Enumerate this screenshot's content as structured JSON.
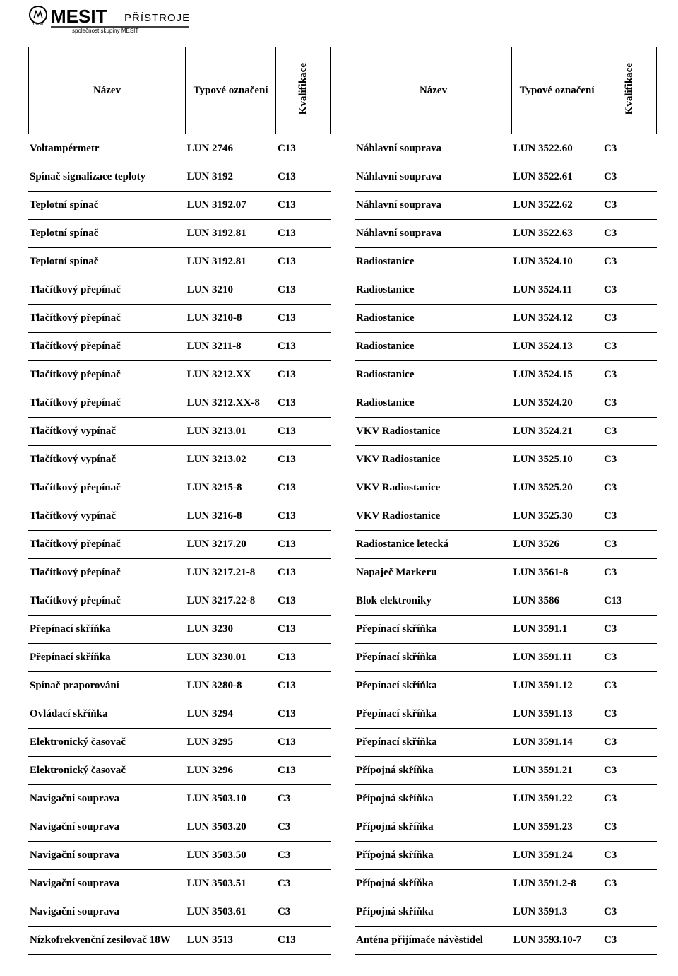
{
  "logo": {
    "brand_main": "MESIT",
    "brand_sub": "PŘÍSTROJE",
    "tagline": "společnost skupiny MESIT",
    "mark_text": "mesit"
  },
  "headers": {
    "name": "Název",
    "type": "Typové označení",
    "qual": "Kvalifikace"
  },
  "left": [
    {
      "n": "Voltampérmetr",
      "t": "LUN 2746",
      "q": "C13"
    },
    {
      "n": "Spínač signalizace teploty",
      "t": "LUN 3192",
      "q": "C13"
    },
    {
      "n": "Teplotní spínač",
      "t": "LUN 3192.07",
      "q": "C13"
    },
    {
      "n": "Teplotní spínač",
      "t": "LUN 3192.81",
      "q": "C13"
    },
    {
      "n": "Teplotní spínač",
      "t": "LUN 3192.81",
      "q": "C13"
    },
    {
      "n": "Tlačítkový přepínač",
      "t": "LUN 3210",
      "q": "C13"
    },
    {
      "n": "Tlačítkový přepínač",
      "t": "LUN 3210-8",
      "q": "C13"
    },
    {
      "n": "Tlačítkový přepínač",
      "t": "LUN 3211-8",
      "q": "C13"
    },
    {
      "n": "Tlačítkový přepínač",
      "t": "LUN 3212.XX",
      "q": "C13"
    },
    {
      "n": "Tlačítkový přepínač",
      "t": "LUN 3212.XX-8",
      "q": "C13"
    },
    {
      "n": "Tlačítkový vypínač",
      "t": "LUN 3213.01",
      "q": "C13"
    },
    {
      "n": "Tlačítkový vypínač",
      "t": "LUN 3213.02",
      "q": "C13"
    },
    {
      "n": "Tlačítkový přepínač",
      "t": "LUN 3215-8",
      "q": "C13"
    },
    {
      "n": "Tlačítkový vypínač",
      "t": "LUN 3216-8",
      "q": "C13"
    },
    {
      "n": "Tlačítkový přepínač",
      "t": "LUN 3217.20",
      "q": "C13"
    },
    {
      "n": "Tlačítkový přepínač",
      "t": "LUN 3217.21-8",
      "q": "C13"
    },
    {
      "n": "Tlačítkový přepínač",
      "t": "LUN 3217.22-8",
      "q": "C13"
    },
    {
      "n": "Přepínací skříňka",
      "t": "LUN 3230",
      "q": "C13"
    },
    {
      "n": "Přepínací skříňka",
      "t": "LUN 3230.01",
      "q": "C13"
    },
    {
      "n": "Spínač praporování",
      "t": "LUN 3280-8",
      "q": "C13"
    },
    {
      "n": "Ovládací skříňka",
      "t": "LUN 3294",
      "q": "C13"
    },
    {
      "n": "Elektronický časovač",
      "t": "LUN 3295",
      "q": "C13"
    },
    {
      "n": "Elektronický časovač",
      "t": "LUN 3296",
      "q": "C13"
    },
    {
      "n": "Navigační souprava",
      "t": "LUN 3503.10",
      "q": "C3"
    },
    {
      "n": "Navigační souprava",
      "t": "LUN 3503.20",
      "q": "C3"
    },
    {
      "n": "Navigační souprava",
      "t": "LUN 3503.50",
      "q": "C3"
    },
    {
      "n": "Navigační souprava",
      "t": "LUN 3503.51",
      "q": "C3"
    },
    {
      "n": "Navigační souprava",
      "t": "LUN 3503.61",
      "q": "C3"
    },
    {
      "n": "Nízkofrekvenční zesilovač 18W",
      "t": "LUN 3513",
      "q": "C13"
    }
  ],
  "right": [
    {
      "n": "Náhlavní souprava",
      "t": "LUN 3522.60",
      "q": "C3"
    },
    {
      "n": "Náhlavní souprava",
      "t": "LUN 3522.61",
      "q": "C3"
    },
    {
      "n": "Náhlavní souprava",
      "t": "LUN 3522.62",
      "q": "C3"
    },
    {
      "n": "Náhlavní souprava",
      "t": "LUN 3522.63",
      "q": "C3"
    },
    {
      "n": "Radiostanice",
      "t": "LUN 3524.10",
      "q": "C3"
    },
    {
      "n": "Radiostanice",
      "t": "LUN 3524.11",
      "q": "C3"
    },
    {
      "n": "Radiostanice",
      "t": "LUN 3524.12",
      "q": "C3"
    },
    {
      "n": "Radiostanice",
      "t": "LUN 3524.13",
      "q": "C3"
    },
    {
      "n": "Radiostanice",
      "t": "LUN 3524.15",
      "q": "C3"
    },
    {
      "n": "Radiostanice",
      "t": "LUN 3524.20",
      "q": "C3"
    },
    {
      "n": "VKV Radiostanice",
      "t": "LUN 3524.21",
      "q": "C3"
    },
    {
      "n": "VKV Radiostanice",
      "t": "LUN 3525.10",
      "q": "C3"
    },
    {
      "n": "VKV Radiostanice",
      "t": "LUN 3525.20",
      "q": "C3"
    },
    {
      "n": "VKV Radiostanice",
      "t": "LUN 3525.30",
      "q": "C3"
    },
    {
      "n": "Radiostanice letecká",
      "t": "LUN 3526",
      "q": "C3"
    },
    {
      "n": "Napaječ Markeru",
      "t": "LUN 3561-8",
      "q": "C3"
    },
    {
      "n": "Blok elektroniky",
      "t": "LUN 3586",
      "q": "C13"
    },
    {
      "n": "Přepínací skříňka",
      "t": "LUN 3591.1",
      "q": "C3"
    },
    {
      "n": "Přepínací skříňka",
      "t": "LUN 3591.11",
      "q": "C3"
    },
    {
      "n": "Přepínací skříňka",
      "t": "LUN 3591.12",
      "q": "C3"
    },
    {
      "n": "Přepínací skříňka",
      "t": "LUN 3591.13",
      "q": "C3"
    },
    {
      "n": "Přepínací skříňka",
      "t": "LUN 3591.14",
      "q": "C3"
    },
    {
      "n": "Přípojná skříňka",
      "t": "LUN 3591.21",
      "q": "C3"
    },
    {
      "n": "Přípojná skříňka",
      "t": "LUN 3591.22",
      "q": "C3"
    },
    {
      "n": "Přípojná skříňka",
      "t": "LUN 3591.23",
      "q": "C3"
    },
    {
      "n": "Přípojná skříňka",
      "t": "LUN 3591.24",
      "q": "C3"
    },
    {
      "n": "Přípojná skříňka",
      "t": "LUN 3591.2-8",
      "q": "C3"
    },
    {
      "n": "Přípojná skříňka",
      "t": "LUN 3591.3",
      "q": "C3"
    },
    {
      "n": "Anténa přijímače návěstidel",
      "t": "LUN 3593.10-7",
      "q": "C3"
    }
  ]
}
